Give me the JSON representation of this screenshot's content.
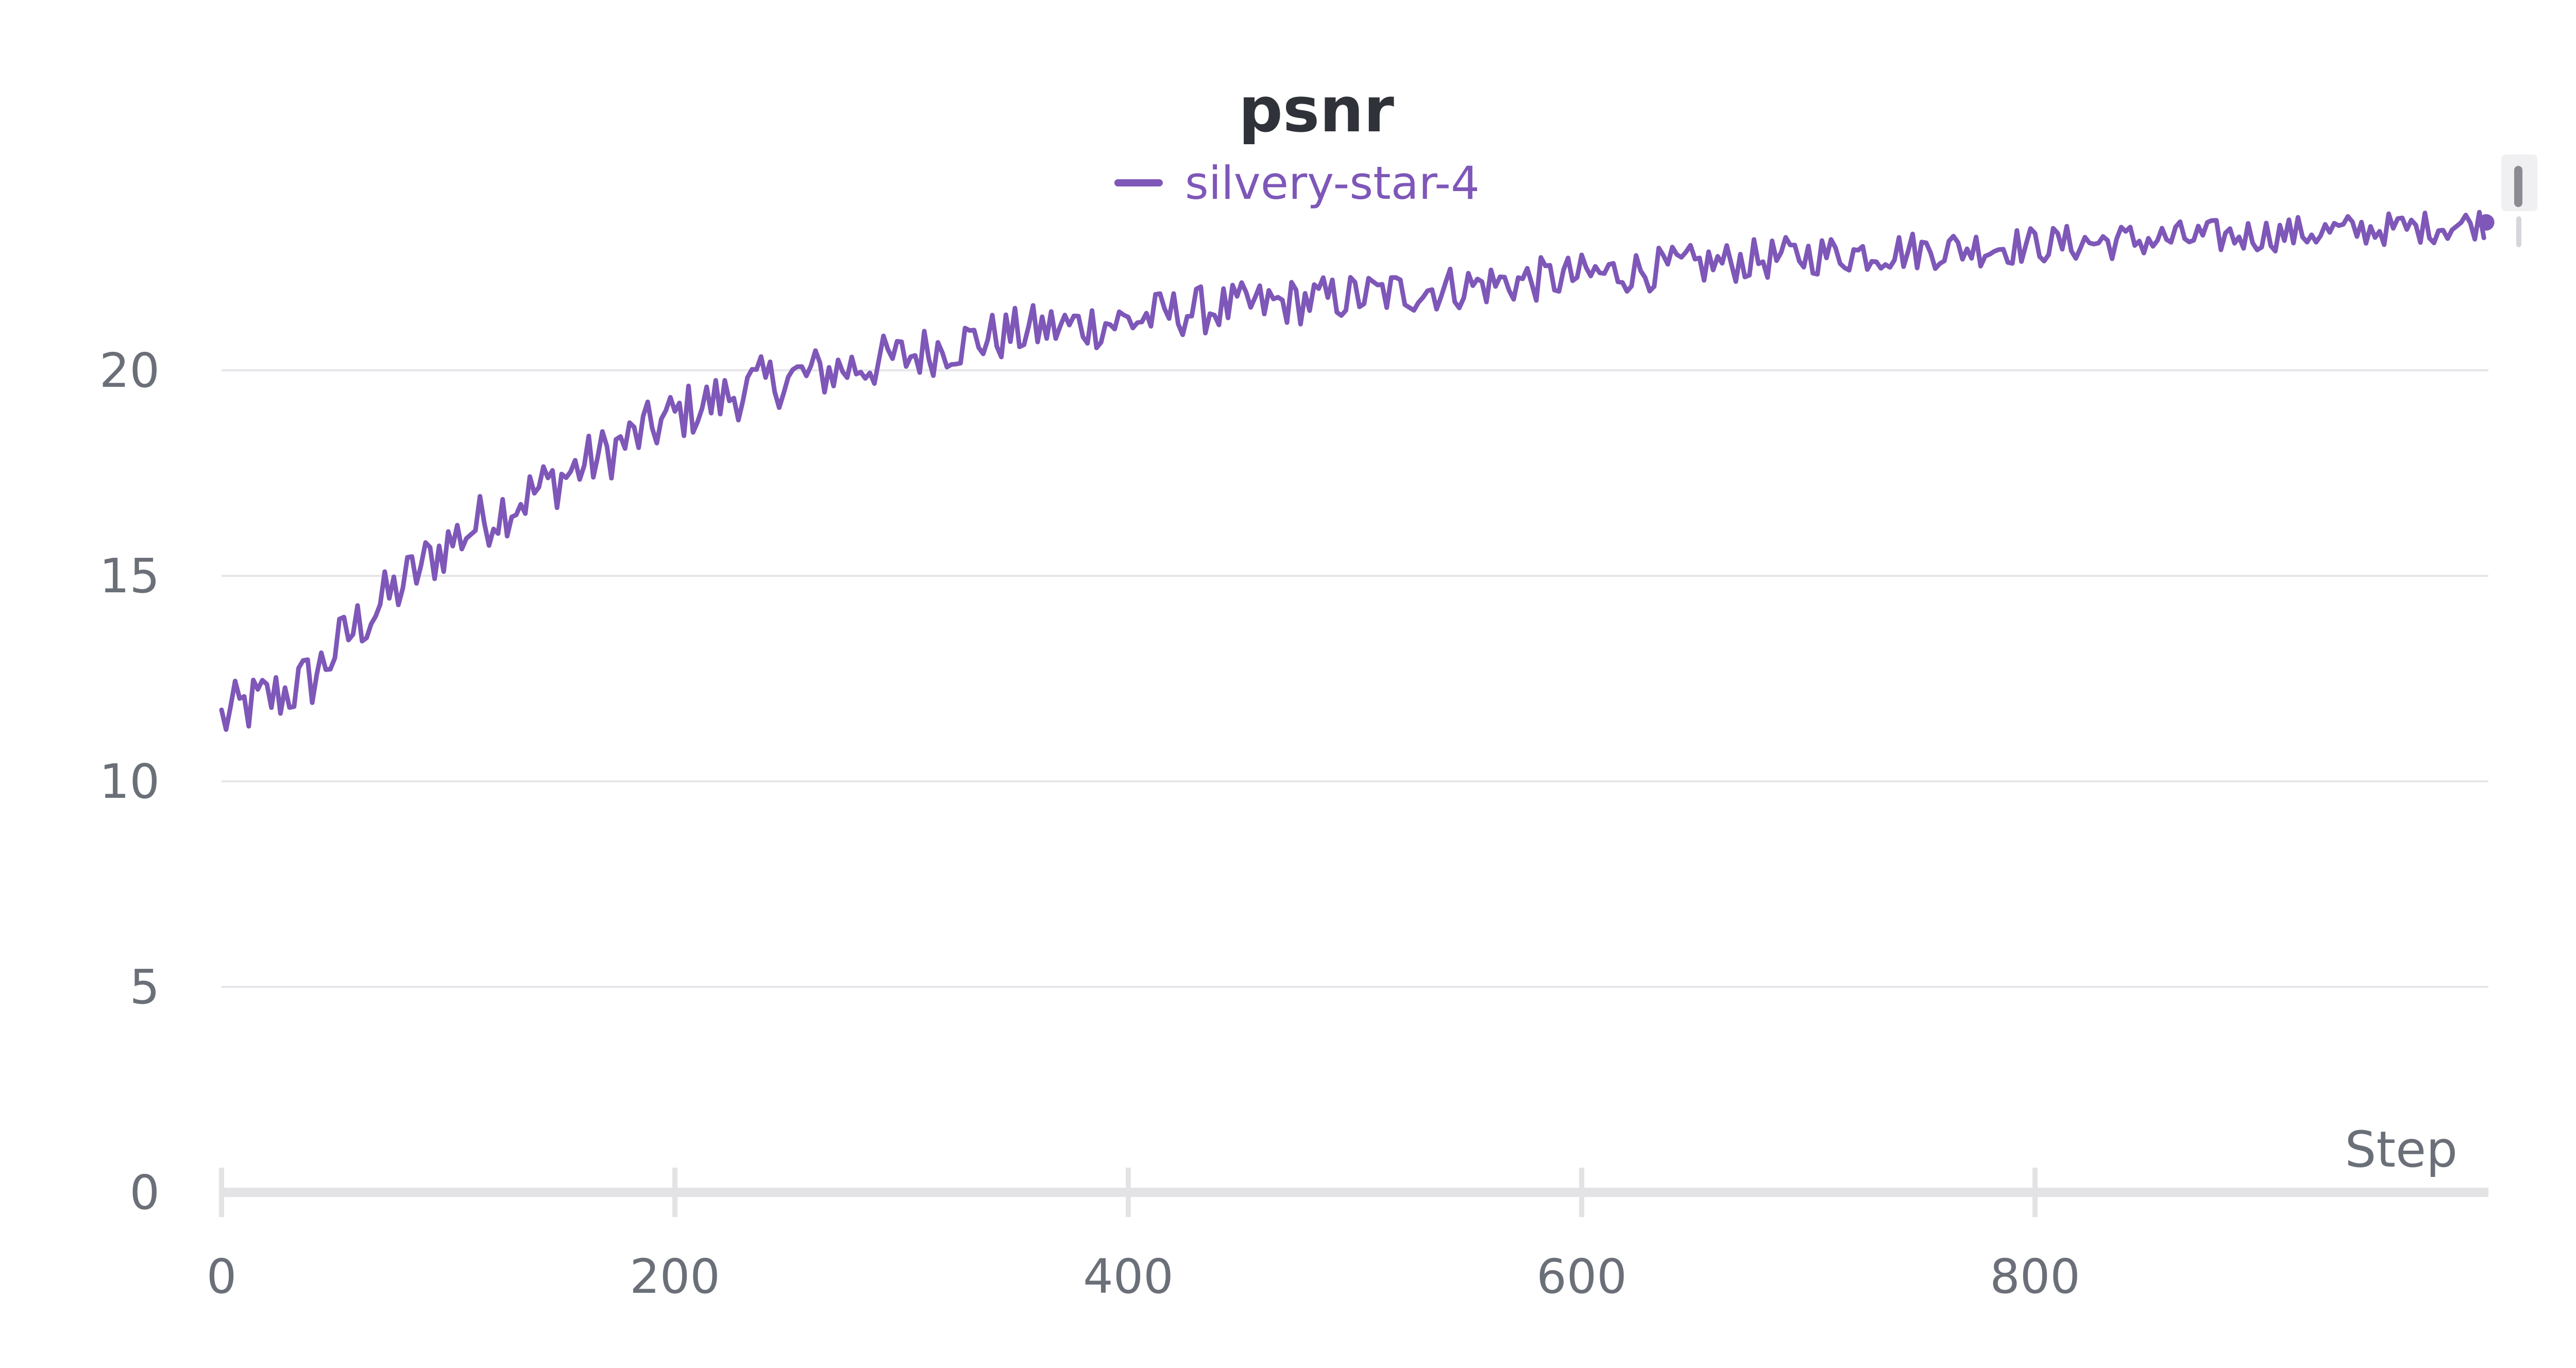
{
  "chart_data": {
    "type": "line",
    "title": "psnr",
    "xlabel": "Step",
    "ylabel": "",
    "xlim": [
      0,
      1000
    ],
    "ylim": [
      0,
      25
    ],
    "x_ticks": [
      0,
      200,
      400,
      600,
      800
    ],
    "y_ticks": [
      0,
      5,
      10,
      15,
      20
    ],
    "grid": true,
    "legend_position": "top-center",
    "series": [
      {
        "name": "silvery-star-4",
        "color": "#7e57b8",
        "x": [
          0,
          10,
          20,
          30,
          40,
          50,
          60,
          70,
          80,
          90,
          100,
          120,
          140,
          160,
          180,
          200,
          220,
          240,
          260,
          280,
          300,
          320,
          340,
          360,
          380,
          400,
          420,
          440,
          460,
          480,
          500,
          520,
          540,
          560,
          580,
          600,
          620,
          640,
          660,
          680,
          700,
          720,
          740,
          760,
          780,
          800,
          820,
          840,
          860,
          880,
          900,
          920,
          940,
          960,
          980,
          999
        ],
        "y": [
          11.5,
          11.8,
          12.0,
          12.2,
          12.5,
          13.2,
          13.8,
          14.3,
          14.8,
          15.3,
          15.8,
          16.5,
          17.1,
          17.7,
          18.3,
          18.9,
          19.3,
          19.7,
          19.9,
          20.1,
          20.3,
          20.6,
          20.8,
          21.0,
          21.1,
          21.2,
          21.4,
          21.5,
          21.6,
          21.7,
          21.8,
          21.9,
          22.0,
          22.1,
          22.2,
          22.3,
          22.4,
          22.5,
          22.6,
          22.7,
          22.8,
          22.85,
          22.9,
          22.95,
          23.0,
          23.05,
          23.1,
          23.15,
          23.2,
          23.25,
          23.3,
          23.35,
          23.4,
          23.45,
          23.5,
          23.6
        ]
      }
    ]
  }
}
